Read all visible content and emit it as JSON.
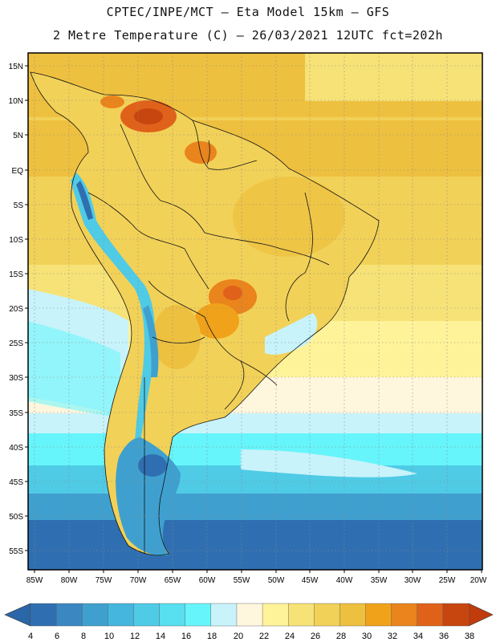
{
  "header": {
    "line1": "CPTEC/INPE/MCT –  Eta Model 15km – GFS",
    "line2": "2 Metre Temperature (C) – 26/03/2021 12UTC fct=202h"
  },
  "map": {
    "lat_labels": [
      "15N",
      "10N",
      "5N",
      "EQ",
      "5S",
      "10S",
      "15S",
      "20S",
      "25S",
      "30S",
      "35S",
      "40S",
      "45S",
      "50S",
      "55S"
    ],
    "lon_labels": [
      "85W",
      "80W",
      "75W",
      "70W",
      "65W",
      "60W",
      "55W",
      "50W",
      "45W",
      "40W",
      "35W",
      "30W",
      "25W",
      "20W"
    ]
  },
  "colorbar": {
    "labels": [
      "4",
      "6",
      "8",
      "10",
      "12",
      "14",
      "16",
      "18",
      "20",
      "22",
      "24",
      "26",
      "28",
      "30",
      "32",
      "34",
      "36",
      "38"
    ],
    "colors": [
      "#2f6fb1",
      "#3a87c1",
      "#3fa0cf",
      "#45b6dd",
      "#4fcbe6",
      "#58dff0",
      "#66f5fb",
      "#c8f3fb",
      "#fff6de",
      "#fff39a",
      "#f7e277",
      "#f2d158",
      "#eec03f",
      "#f0a21a",
      "#ea841c",
      "#e0621a",
      "#c7460f"
    ],
    "low_color": "#2a66a8",
    "high_color": "#c03c0d"
  }
}
